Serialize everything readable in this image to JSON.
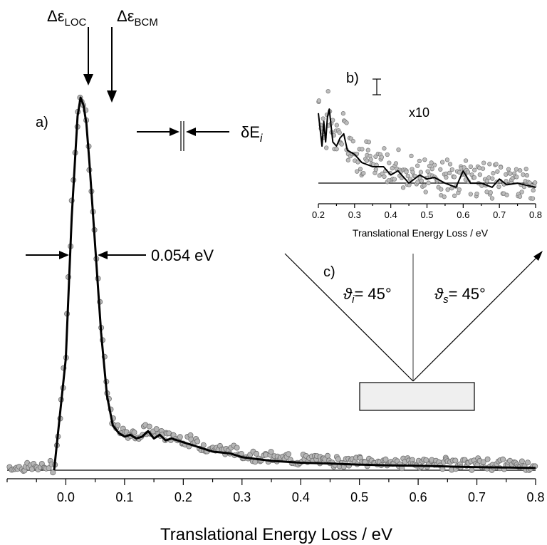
{
  "chart_data": [
    {
      "panel_label": "a)",
      "type": "scatter",
      "xlabel": "Translational Energy Loss / eV",
      "xlim": [
        -0.1,
        0.8
      ],
      "ylim": [
        0,
        1
      ],
      "x_ticks": [
        0.0,
        0.1,
        0.2,
        0.3,
        0.4,
        0.5,
        0.6,
        0.7,
        0.8
      ],
      "x_tick_labels": [
        "0.0",
        "0.1",
        "0.2",
        "0.3",
        "0.4",
        "0.5",
        "0.6",
        "0.7",
        "0.8"
      ],
      "series": [
        {
          "kind": "line",
          "x": [
            -0.02,
            0.0,
            0.01,
            0.02,
            0.025,
            0.03,
            0.035,
            0.04,
            0.05,
            0.06,
            0.07,
            0.08,
            0.09,
            0.1,
            0.11,
            0.12,
            0.13,
            0.14,
            0.15,
            0.16,
            0.17,
            0.18,
            0.2,
            0.22,
            0.25,
            0.28,
            0.3,
            0.35,
            0.4,
            0.45,
            0.5,
            0.55,
            0.6,
            0.65,
            0.7,
            0.75,
            0.8
          ],
          "y": [
            0.0,
            0.3,
            0.68,
            0.95,
            1.0,
            0.98,
            0.93,
            0.83,
            0.6,
            0.37,
            0.2,
            0.12,
            0.1,
            0.09,
            0.095,
            0.085,
            0.09,
            0.105,
            0.085,
            0.095,
            0.08,
            0.085,
            0.075,
            0.065,
            0.05,
            0.045,
            0.035,
            0.025,
            0.02,
            0.018,
            0.015,
            0.013,
            0.012,
            0.01,
            0.008,
            0.007,
            0.006
          ]
        }
      ],
      "annotations": {
        "peak_loc_label": "Δε",
        "peak_loc_sub": "LOC",
        "peak_loc_x": 0.04,
        "peak_bcm_label": "Δε",
        "peak_bcm_sub": "BCM",
        "peak_bcm_x": 0.085,
        "fwhm_label": "0.054 eV",
        "resolution_label": "δE",
        "resolution_sub": "i"
      }
    },
    {
      "panel_label": "b)",
      "type": "scatter",
      "xlabel": "Translational Energy Loss / eV",
      "xlim": [
        0.2,
        0.8
      ],
      "ylim": [
        -0.02,
        0.16
      ],
      "x_ticks": [
        0.2,
        0.3,
        0.4,
        0.5,
        0.6,
        0.7,
        0.8
      ],
      "x_tick_labels": [
        "0.2",
        "0.3",
        "0.4",
        "0.5",
        "0.6",
        "0.7",
        "0.8"
      ],
      "scale_label": "x10",
      "series": [
        {
          "kind": "line",
          "x": [
            0.2,
            0.21,
            0.215,
            0.22,
            0.225,
            0.23,
            0.24,
            0.25,
            0.26,
            0.27,
            0.28,
            0.3,
            0.32,
            0.35,
            0.38,
            0.4,
            0.42,
            0.45,
            0.48,
            0.5,
            0.52,
            0.55,
            0.58,
            0.6,
            0.62,
            0.65,
            0.68,
            0.7,
            0.72,
            0.75,
            0.78,
            0.8
          ],
          "y": [
            0.09,
            0.05,
            0.08,
            0.055,
            0.085,
            0.095,
            0.055,
            0.05,
            0.06,
            0.065,
            0.045,
            0.04,
            0.03,
            0.025,
            0.025,
            0.015,
            0.02,
            0.005,
            0.015,
            0.01,
            0.012,
            0.005,
            0.0,
            0.02,
            0.005,
            0.005,
            0.0,
            0.01,
            0.003,
            0.005,
            0.002,
            0.0
          ]
        }
      ]
    }
  ],
  "diagram": {
    "panel_label": "c)",
    "incident_angle_label": "ϑ",
    "incident_angle_sub": "i",
    "incident_angle_value": "= 45°",
    "scattered_angle_label": "ϑ",
    "scattered_angle_sub": "s",
    "scattered_angle_value": "= 45°"
  }
}
